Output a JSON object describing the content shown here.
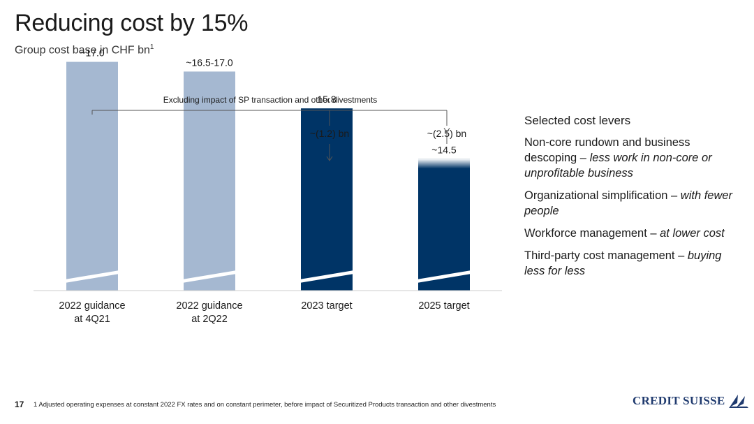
{
  "header": {
    "title": "Reducing cost by 15%",
    "subtitle": "Group cost base in CHF bn",
    "subtitle_footnote_ref": "1"
  },
  "chart_data": {
    "type": "bar",
    "categories": [
      [
        "2022 guidance",
        "at 4Q21"
      ],
      [
        "2022 guidance",
        "at 2Q22"
      ],
      [
        "2023 target"
      ],
      [
        "2025 target"
      ]
    ],
    "values": [
      17.0,
      16.75,
      15.8,
      14.5
    ],
    "value_labels": [
      "~17.0",
      "~16.5-17.0",
      "15.8",
      "~14.5"
    ],
    "bar_colors": [
      "#a5b8d1",
      "#a5b8d1",
      "#003466",
      "#003466"
    ],
    "bracket_label": "Excluding impact of SP transaction and other divestments",
    "reductions": [
      {
        "target_index": 2,
        "label": "~(1.2) bn"
      },
      {
        "target_index": 3,
        "label": "~(2.5) bn"
      }
    ],
    "axis_break": true,
    "grid": false
  },
  "levers": {
    "heading": "Selected cost levers",
    "items": [
      {
        "text": "Non-core rundown and business descoping – ",
        "italic": "less work in non-core or unprofitable business"
      },
      {
        "text": "Organizational simplification – ",
        "italic": "with fewer people"
      },
      {
        "text": "Workforce management – ",
        "italic": "at lower cost"
      },
      {
        "text": "Third-party cost management – ",
        "italic": "buying less for less"
      }
    ]
  },
  "footer": {
    "page_number": "17",
    "footnote": "1 Adjusted operating expenses at constant 2022 FX rates and on constant perimeter, before impact of Securitized Products transaction and other divestments",
    "logo_text": "CREDIT SUISSE"
  },
  "colors": {
    "light_bar": "#a5b8d1",
    "dark_bar": "#003466",
    "logo": "#1f3a6e"
  }
}
